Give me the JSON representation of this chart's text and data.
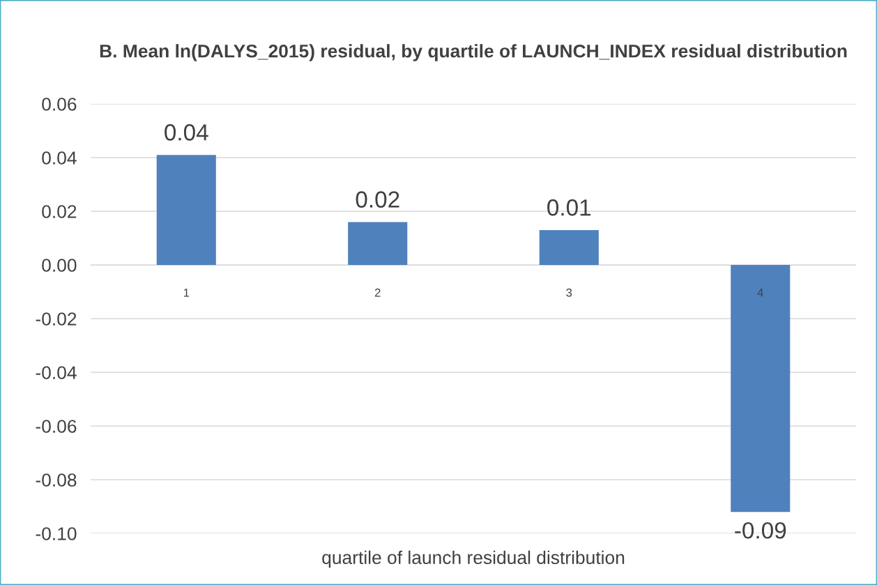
{
  "chart_data": {
    "type": "bar",
    "title": "B. Mean ln(DALYS_2015) residual, by quartile of LAUNCH_INDEX residual distribution",
    "xlabel": "quartile of launch residual distribution",
    "categories": [
      "1",
      "2",
      "3",
      "4"
    ],
    "values": [
      0.041,
      0.016,
      0.013,
      -0.092
    ],
    "value_labels": [
      "0.04",
      "0.02",
      "0.01",
      "-0.09"
    ],
    "color": "#4f81bd",
    "ylim": [
      -0.1,
      0.06
    ],
    "yticks": [
      {
        "value": -0.1,
        "label": "-0.10"
      },
      {
        "value": -0.08,
        "label": "-0.08"
      },
      {
        "value": -0.06,
        "label": "-0.06"
      },
      {
        "value": -0.04,
        "label": "-0.04"
      },
      {
        "value": -0.02,
        "label": "-0.02"
      },
      {
        "value": 0.0,
        "label": "0.00"
      },
      {
        "value": 0.02,
        "label": "0.02"
      },
      {
        "value": 0.04,
        "label": "0.04"
      },
      {
        "value": 0.06,
        "label": "0.06"
      }
    ],
    "grid": "y",
    "legend": false
  }
}
